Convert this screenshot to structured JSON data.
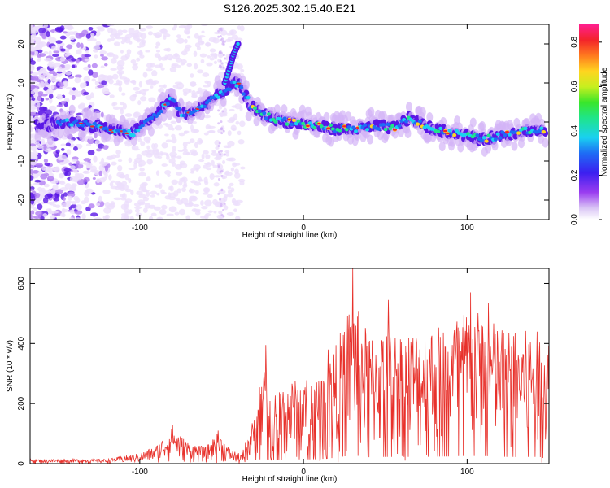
{
  "title": "S126.2025.302.15.40.E21",
  "chart_data": [
    {
      "type": "heatmap",
      "xlabel": "Height of straight line (km)",
      "ylabel": "Frequency (Hz)",
      "xlim": [
        -167,
        150
      ],
      "ylim": [
        -25,
        25
      ],
      "xticks": [
        "-100",
        "0",
        "100"
      ],
      "yticks": [
        "-20",
        "-10",
        "0",
        "10",
        "20"
      ],
      "colorbar": {
        "label": "Normalized spectral amplitude",
        "range": [
          0.0,
          0.88
        ],
        "ticks": [
          "0.0",
          "0.2",
          "0.4",
          "0.6",
          "0.8"
        ]
      },
      "ridge": [
        {
          "x": -160,
          "y": -1
        },
        {
          "x": -140,
          "y": 0
        },
        {
          "x": -115,
          "y": -2
        },
        {
          "x": -105,
          "y": -3
        },
        {
          "x": -95,
          "y": 0
        },
        {
          "x": -85,
          "y": 4
        },
        {
          "x": -80,
          "y": 6
        },
        {
          "x": -75,
          "y": 2
        },
        {
          "x": -65,
          "y": 3
        },
        {
          "x": -55,
          "y": 6
        },
        {
          "x": -48,
          "y": 8
        },
        {
          "x": -42,
          "y": 10
        },
        {
          "x": -38,
          "y": 9
        },
        {
          "x": -32,
          "y": 4
        },
        {
          "x": -25,
          "y": 2
        },
        {
          "x": -15,
          "y": 0.5
        },
        {
          "x": 0,
          "y": -0.5
        },
        {
          "x": 15,
          "y": -1.5
        },
        {
          "x": 30,
          "y": -2
        },
        {
          "x": 45,
          "y": -1
        },
        {
          "x": 55,
          "y": -1.5
        },
        {
          "x": 65,
          "y": 1
        },
        {
          "x": 80,
          "y": -2
        },
        {
          "x": 95,
          "y": -3
        },
        {
          "x": 110,
          "y": -4.5
        },
        {
          "x": 125,
          "y": -3
        },
        {
          "x": 140,
          "y": -2
        },
        {
          "x": 148,
          "y": -2.5
        }
      ],
      "branch": [
        {
          "x": -48,
          "y": 10
        },
        {
          "x": -45,
          "y": 14
        },
        {
          "x": -43,
          "y": 17
        },
        {
          "x": -40,
          "y": 20
        }
      ]
    },
    {
      "type": "line",
      "xlabel": "Height of straight line (km)",
      "ylabel": "SNR (10 * v/v)",
      "xlim": [
        -167,
        150
      ],
      "ylim": [
        0,
        650
      ],
      "xticks": [
        "-100",
        "0",
        "100"
      ],
      "yticks": [
        "0",
        "200",
        "400",
        "600"
      ],
      "series": [
        {
          "color": "#e8312b",
          "envelope": [
            {
              "x": -167,
              "y": 15
            },
            {
              "x": -120,
              "y": 15
            },
            {
              "x": -100,
              "y": 35
            },
            {
              "x": -90,
              "y": 60
            },
            {
              "x": -80,
              "y": 120
            },
            {
              "x": -70,
              "y": 70
            },
            {
              "x": -60,
              "y": 55
            },
            {
              "x": -52,
              "y": 105
            },
            {
              "x": -45,
              "y": 50
            },
            {
              "x": -38,
              "y": 30
            },
            {
              "x": -30,
              "y": 160
            },
            {
              "x": -25,
              "y": 340
            },
            {
              "x": -20,
              "y": 230
            },
            {
              "x": -10,
              "y": 280
            },
            {
              "x": 0,
              "y": 280
            },
            {
              "x": 10,
              "y": 300
            },
            {
              "x": 20,
              "y": 400
            },
            {
              "x": 30,
              "y": 560
            },
            {
              "x": 40,
              "y": 430
            },
            {
              "x": 50,
              "y": 450
            },
            {
              "x": 60,
              "y": 440
            },
            {
              "x": 70,
              "y": 450
            },
            {
              "x": 80,
              "y": 460
            },
            {
              "x": 90,
              "y": 480
            },
            {
              "x": 100,
              "y": 520
            },
            {
              "x": 110,
              "y": 500
            },
            {
              "x": 120,
              "y": 460
            },
            {
              "x": 130,
              "y": 440
            },
            {
              "x": 140,
              "y": 450
            },
            {
              "x": 150,
              "y": 420
            }
          ],
          "peaks": [
            {
              "x": -80,
              "y": 130
            },
            {
              "x": -52,
              "y": 110
            },
            {
              "x": -23,
              "y": 395
            },
            {
              "x": 15,
              "y": 380
            },
            {
              "x": 30,
              "y": 650
            },
            {
              "x": 52,
              "y": 545
            },
            {
              "x": 102,
              "y": 570
            },
            {
              "x": 113,
              "y": 535
            }
          ]
        }
      ]
    }
  ]
}
